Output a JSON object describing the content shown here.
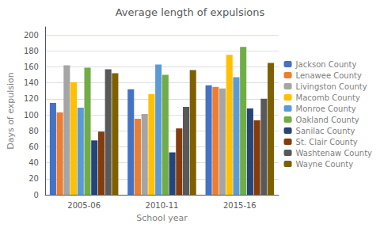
{
  "chart_data": {
    "type": "bar",
    "title": "Average length of expulsions",
    "xlabel": "School year",
    "ylabel": "Days of expulsion",
    "categories": [
      "2005-06",
      "2010-11",
      "2015-16"
    ],
    "series": [
      {
        "name": "Jackson County",
        "color": "#4472C4",
        "values": [
          115,
          132,
          137
        ]
      },
      {
        "name": "Lenawee County",
        "color": "#ED7D31",
        "values": [
          103,
          95,
          135
        ]
      },
      {
        "name": "Livingston County",
        "color": "#A5A5A5",
        "values": [
          162,
          101,
          133
        ]
      },
      {
        "name": "Macomb County",
        "color": "#FFC000",
        "values": [
          141,
          126,
          175
        ]
      },
      {
        "name": "Monroe County",
        "color": "#5B9BD5",
        "values": [
          109,
          163,
          147
        ]
      },
      {
        "name": "Oakland County",
        "color": "#70AD47",
        "values": [
          159,
          150,
          185
        ]
      },
      {
        "name": "Sanilac County",
        "color": "#264478",
        "values": [
          68,
          53,
          108
        ]
      },
      {
        "name": "St. Clair County",
        "color": "#843C0C",
        "values": [
          79,
          83,
          93
        ]
      },
      {
        "name": "Washtenaw County",
        "color": "#595959",
        "values": [
          157,
          110,
          120
        ]
      },
      {
        "name": "Wayne County",
        "color": "#7F6000",
        "values": [
          152,
          156,
          165
        ]
      }
    ],
    "ylim": [
      0,
      210
    ],
    "yticks": [
      0,
      20,
      40,
      60,
      80,
      100,
      120,
      140,
      160,
      180,
      200
    ],
    "grid": true,
    "legend": "right"
  }
}
